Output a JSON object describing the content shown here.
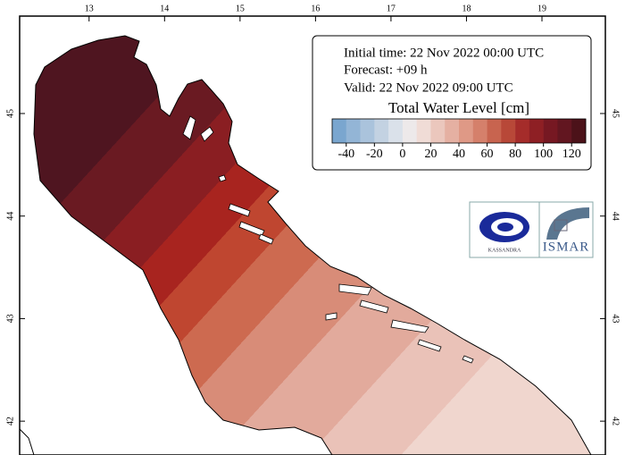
{
  "map": {
    "lon_range": [
      12.08,
      19.84
    ],
    "lat_range": [
      41.67,
      45.95
    ],
    "lon_ticks": [
      13,
      14,
      15,
      16,
      17,
      18,
      19
    ],
    "lat_ticks": [
      42,
      43,
      44,
      45
    ]
  },
  "info": {
    "initial_time": "Initial time: 22 Nov 2022 00:00 UTC",
    "forecast": "Forecast: +09 h",
    "valid": "Valid: 22 Nov 2022 09:00 UTC"
  },
  "legend": {
    "title": "Total Water Level [cm]",
    "range": [
      -50,
      130
    ],
    "ticks": [
      -40,
      -20,
      0,
      20,
      40,
      60,
      80,
      100,
      120
    ],
    "colors": [
      "#7aa6cf",
      "#93b5d6",
      "#aac3dc",
      "#c3d2e2",
      "#dae1ea",
      "#ede9ea",
      "#f0dcd6",
      "#ebc7bd",
      "#e5b0a2",
      "#df9986",
      "#d5806b",
      "#c8644f",
      "#b84838",
      "#a52c2a",
      "#8e1f24",
      "#761822",
      "#621620",
      "#4c1219"
    ]
  },
  "logos": {
    "left": "KASSANDRA",
    "right": "ISMAR"
  }
}
